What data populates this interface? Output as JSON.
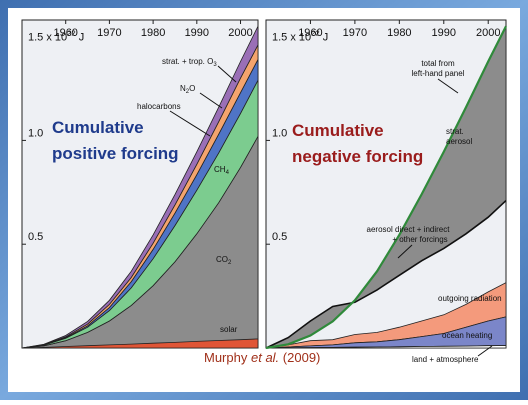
{
  "credit": {
    "author": "Murphy",
    "etal": "et al.",
    "year": "(2009)"
  },
  "colors": {
    "frame_outer": "#5b8fc9",
    "frame_inner": "#ffffff",
    "panel_bg": "#eef0f4",
    "co2": "#8c8c8c",
    "ch4": "#7ccc8f",
    "halocarbons": "#4f74c6",
    "n2o": "#f4a46d",
    "o3": "#9a6fb6",
    "solar": "#e05536",
    "aerosol_fill": "#8c8c8c",
    "other_forcings": "#f49a7c",
    "ocean_heating": "#7b86c9",
    "total_line": "#2f8a3a",
    "title_left": "#1f3b8c",
    "title_right": "#9a1c1c",
    "credit_text": "#a0301a"
  },
  "chart_data": [
    {
      "type": "area",
      "title": "Cumulative positive forcing",
      "unit_label": "1.5 x 10",
      "unit_exp": "22",
      "unit_suffix": " J",
      "xlim": [
        1950,
        2004
      ],
      "ylim": [
        0,
        1.58
      ],
      "x_ticks": [
        "1960",
        "1970",
        "1980",
        "1990",
        "2000"
      ],
      "x_tick_values": [
        1960,
        1970,
        1980,
        1990,
        2000
      ],
      "y_ticks": [
        {
          "label": "0.5",
          "value": 0.5
        },
        {
          "label": "1.0",
          "value": 1.0
        }
      ],
      "x": [
        1950,
        1955,
        1960,
        1965,
        1970,
        1975,
        1980,
        1985,
        1990,
        1995,
        2000,
        2004
      ],
      "series": [
        {
          "name": "CO2",
          "label": "CO",
          "label_sub": "2",
          "cumulative_top": [
            0,
            0.01,
            0.035,
            0.075,
            0.13,
            0.205,
            0.3,
            0.415,
            0.55,
            0.7,
            0.87,
            1.02
          ]
        },
        {
          "name": "CH4",
          "label": "CH",
          "label_sub": "4",
          "cumulative_top": [
            0,
            0.014,
            0.047,
            0.1,
            0.18,
            0.29,
            0.43,
            0.59,
            0.76,
            0.94,
            1.13,
            1.29
          ]
        },
        {
          "name": "halocarbons",
          "label": "halocarbons",
          "cumulative_top": [
            0,
            0.015,
            0.05,
            0.107,
            0.195,
            0.32,
            0.475,
            0.65,
            0.835,
            1.03,
            1.23,
            1.39
          ]
        },
        {
          "name": "N2O",
          "label": "N",
          "label_sub": "2",
          "label_tail": "O",
          "cumulative_top": [
            0,
            0.016,
            0.054,
            0.115,
            0.21,
            0.34,
            0.505,
            0.69,
            0.885,
            1.09,
            1.3,
            1.46
          ]
        },
        {
          "name": "strat. + trop. O3",
          "label": "strat. + trop. O",
          "label_sub": "3",
          "cumulative_top": [
            0,
            0.018,
            0.06,
            0.128,
            0.23,
            0.37,
            0.545,
            0.74,
            0.945,
            1.16,
            1.38,
            1.55
          ]
        }
      ],
      "solar": {
        "name": "solar",
        "label": "solar",
        "values": [
          0,
          0.003,
          0.007,
          0.011,
          0.015,
          0.019,
          0.023,
          0.027,
          0.032,
          0.036,
          0.04,
          0.044
        ]
      }
    },
    {
      "type": "area",
      "title": "Cumulative negative forcing",
      "unit_label": "1.5 x 10",
      "unit_exp": "22",
      "unit_suffix": " J",
      "xlim": [
        1950,
        2004
      ],
      "ylim": [
        0,
        1.58
      ],
      "x_ticks": [
        "1960",
        "1970",
        "1980",
        "1990",
        "2000"
      ],
      "x_tick_values": [
        1960,
        1970,
        1980,
        1990,
        2000
      ],
      "y_ticks": [
        {
          "label": "0.5",
          "value": 0.5
        },
        {
          "label": "1.0",
          "value": 1.0
        }
      ],
      "x": [
        1950,
        1955,
        1960,
        1965,
        1970,
        1975,
        1980,
        1985,
        1990,
        1995,
        2000,
        2004
      ],
      "total_from_left": {
        "label_line1": "total from",
        "label_line2": "left-hand panel",
        "values": [
          0,
          0.018,
          0.06,
          0.128,
          0.23,
          0.37,
          0.545,
          0.74,
          0.945,
          1.16,
          1.38,
          1.55
        ]
      },
      "aerosol_direct_indirect_other": {
        "label_line1": "aerosol direct + indirect",
        "label_line2": "+ other forcings",
        "values": [
          0,
          0.05,
          0.13,
          0.2,
          0.22,
          0.28,
          0.35,
          0.42,
          0.48,
          0.55,
          0.63,
          0.71
        ]
      },
      "outgoing_radiation": {
        "label": "outgoing radiation",
        "values": [
          0,
          0.015,
          0.035,
          0.04,
          0.065,
          0.075,
          0.1,
          0.13,
          0.16,
          0.21,
          0.27,
          0.315
        ]
      },
      "ocean_heating": {
        "label": "ocean heating",
        "values": [
          0,
          0.005,
          0.01,
          0.015,
          0.025,
          0.03,
          0.04,
          0.055,
          0.07,
          0.1,
          0.13,
          0.15
        ]
      },
      "land_atmosphere": {
        "label": "land + atmosphere",
        "values": [
          0,
          0.001,
          0.002,
          0.003,
          0.004,
          0.005,
          0.006,
          0.007,
          0.008,
          0.009,
          0.011,
          0.012
        ]
      },
      "strat_aerosol": {
        "label_line1": "strat.",
        "label_line2": "aerosol"
      }
    }
  ]
}
